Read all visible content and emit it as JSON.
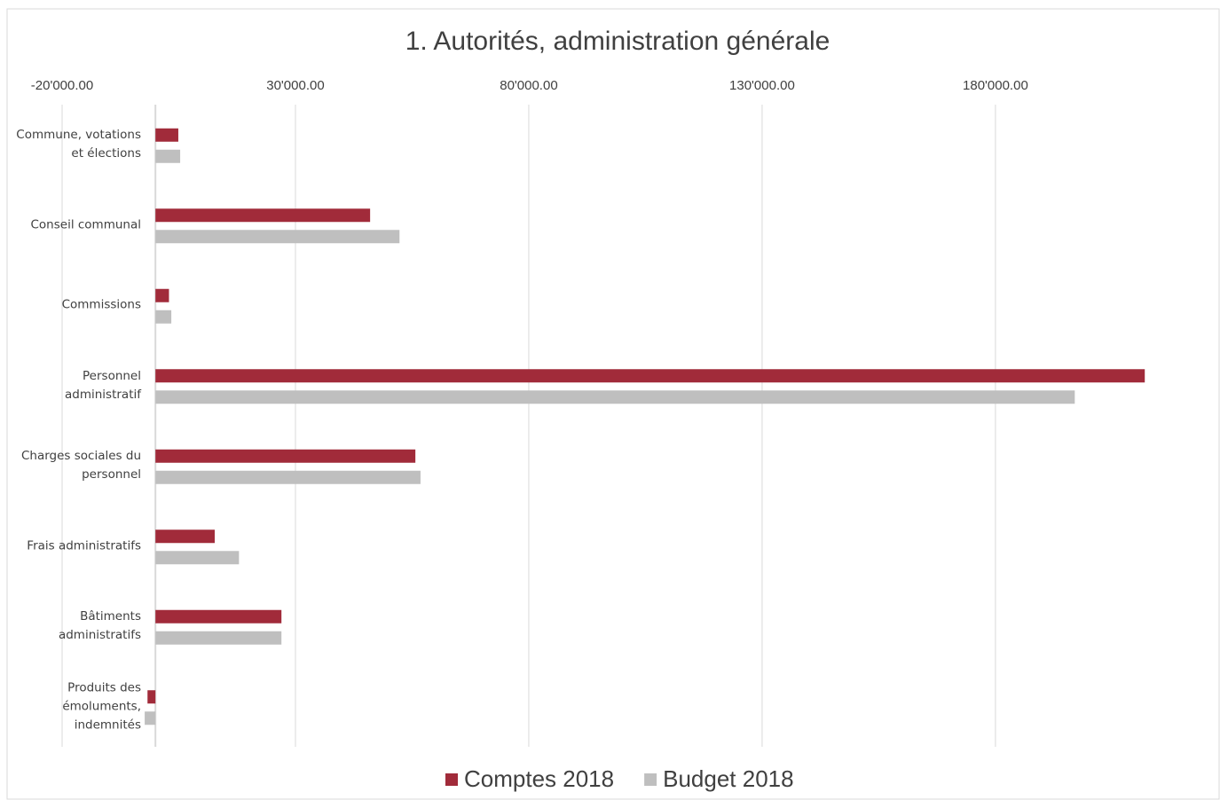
{
  "chart_data": {
    "type": "hbar",
    "title": "1. Autorités, administration générale",
    "categories": [
      "Commune, votations et élections",
      "Conseil communal",
      "Commissions",
      "Personnel administratif",
      "Charges sociales du personnel",
      "Frais administratifs",
      "Bâtiments administratifs",
      "Produits des émoluments, indemnités"
    ],
    "series": [
      {
        "name": "Comptes 2018",
        "color": "#a12b3a",
        "values": [
          4900,
          46000,
          2900,
          212000,
          55700,
          12700,
          27000,
          -1700
        ]
      },
      {
        "name": "Budget 2018",
        "color": "#bfbfbf",
        "values": [
          5300,
          52300,
          3400,
          197000,
          56800,
          17900,
          27000,
          -2300
        ]
      }
    ],
    "xlim": [
      -20000,
      215000
    ],
    "xticks": [
      {
        "value": -20000,
        "label": "-20'000.00"
      },
      {
        "value": 30000,
        "label": "30'000.00"
      },
      {
        "value": 80000,
        "label": "80'000.00"
      },
      {
        "value": 130000,
        "label": "130'000.00"
      },
      {
        "value": 180000,
        "label": "180'000.00"
      }
    ],
    "grid": true,
    "legend": "bottom"
  }
}
